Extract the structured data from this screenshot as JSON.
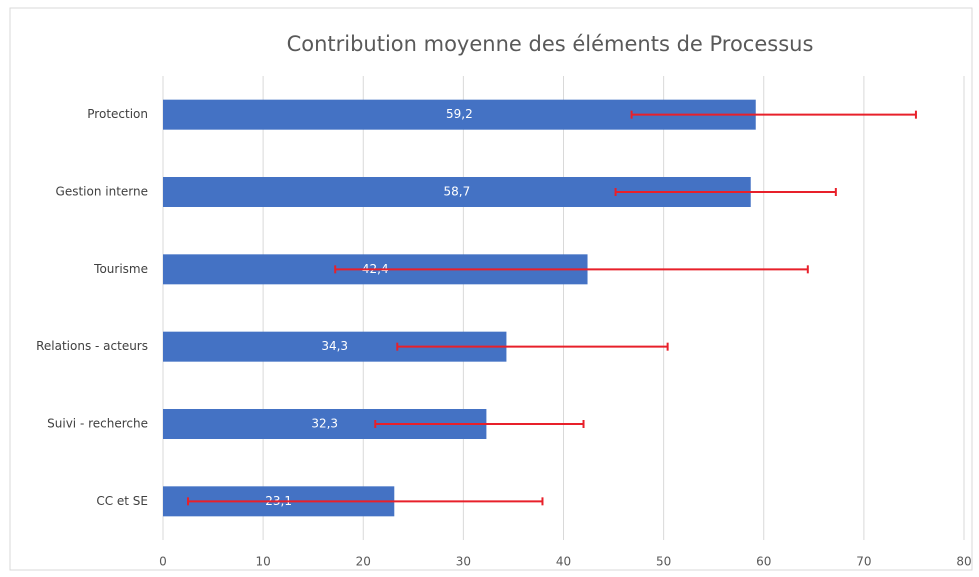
{
  "chart_data": {
    "type": "hbar",
    "title": "Contribution moyenne des éléments de Processus",
    "categories": [
      "Protection",
      "Gestion interne",
      "Tourisme",
      "Relations - acteurs",
      "Suivi - recherche",
      "CC et SE"
    ],
    "values": [
      59.2,
      58.7,
      42.4,
      34.3,
      32.3,
      23.1
    ],
    "value_labels": [
      "59,2",
      "58,7",
      "42,4",
      "34,3",
      "32,3",
      "23,1"
    ],
    "error_minus": [
      12.4,
      13.5,
      25.2,
      10.9,
      11.1,
      20.6
    ],
    "error_plus": [
      16.0,
      8.5,
      22.0,
      16.1,
      9.7,
      14.8
    ],
    "color": "#4472c4",
    "error_color": "#e8202a",
    "xlim": [
      0,
      80
    ],
    "xticks": [
      0,
      10,
      20,
      30,
      40,
      50,
      60,
      70,
      80
    ],
    "grid": true
  }
}
